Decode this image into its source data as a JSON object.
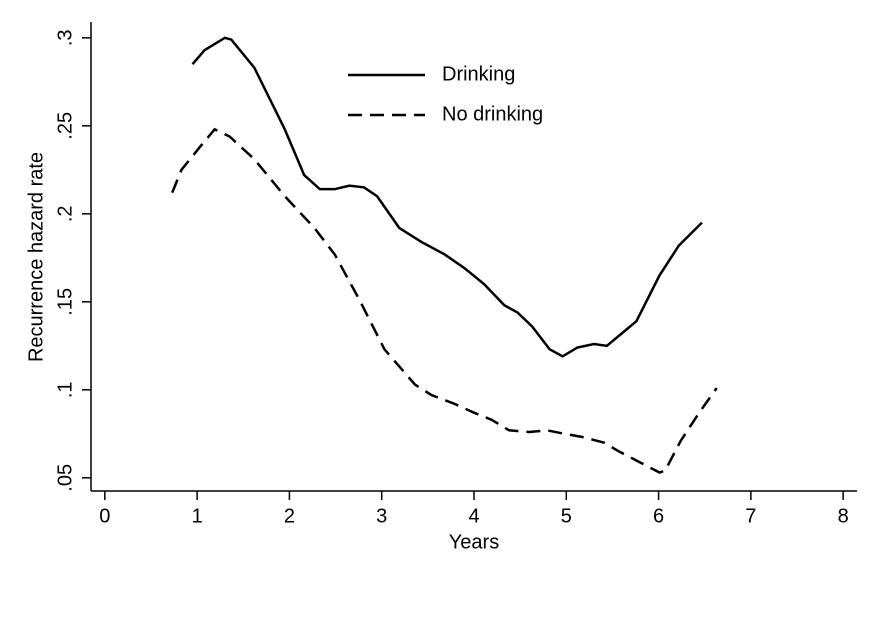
{
  "chart_data": {
    "type": "line",
    "x_label": "Years",
    "y_label": "Recurrence hazard rate",
    "xlim": [
      -0.15,
      8.15
    ],
    "xticks": [
      0,
      1,
      2,
      3,
      4,
      5,
      6,
      7,
      8
    ],
    "ylim": [
      0.0425,
      0.309
    ],
    "yticks": [
      {
        "value": 0.05,
        "label": ".05"
      },
      {
        "value": 0.1,
        "label": ".1"
      },
      {
        "value": 0.15,
        "label": ".15"
      },
      {
        "value": 0.2,
        "label": ".2"
      },
      {
        "value": 0.25,
        "label": ".25"
      },
      {
        "value": 0.3,
        "label": ".3"
      }
    ],
    "grid": false,
    "legend_position": "top",
    "series": [
      {
        "name": "Drinking",
        "color": "#000000",
        "line_style": "solid",
        "x": [
          0.95,
          1.08,
          1.3,
          1.37,
          1.62,
          1.95,
          2.16,
          2.33,
          2.49,
          2.65,
          2.81,
          2.95,
          3.19,
          3.43,
          3.68,
          3.9,
          4.11,
          4.33,
          4.47,
          4.63,
          4.82,
          4.96,
          5.12,
          5.3,
          5.44,
          5.6,
          5.76,
          6.01,
          6.22,
          6.47
        ],
        "values": [
          0.285,
          0.293,
          0.3,
          0.299,
          0.283,
          0.248,
          0.222,
          0.214,
          0.214,
          0.216,
          0.215,
          0.21,
          0.192,
          0.184,
          0.177,
          0.169,
          0.16,
          0.148,
          0.144,
          0.136,
          0.123,
          0.119,
          0.124,
          0.126,
          0.125,
          0.132,
          0.139,
          0.165,
          0.182,
          0.195
        ]
      },
      {
        "name": "No drinking",
        "color": "#000000",
        "line_style": "dashed",
        "x": [
          0.73,
          0.83,
          1.03,
          1.19,
          1.35,
          1.62,
          1.95,
          2.27,
          2.49,
          2.76,
          3.03,
          3.36,
          3.54,
          3.79,
          4.0,
          4.19,
          4.38,
          4.6,
          4.79,
          4.98,
          5.19,
          5.41,
          5.57,
          5.79,
          6.01,
          6.07,
          6.24,
          6.44,
          6.63
        ],
        "values": [
          0.212,
          0.225,
          0.238,
          0.248,
          0.244,
          0.231,
          0.21,
          0.192,
          0.177,
          0.151,
          0.123,
          0.103,
          0.097,
          0.092,
          0.087,
          0.083,
          0.077,
          0.076,
          0.077,
          0.075,
          0.073,
          0.07,
          0.065,
          0.059,
          0.053,
          0.054,
          0.071,
          0.087,
          0.101
        ]
      }
    ]
  }
}
